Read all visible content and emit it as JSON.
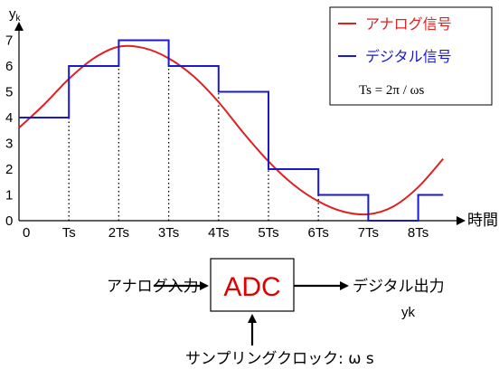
{
  "chart_data": {
    "type": "line",
    "ylabel": "yk",
    "xlabel": "時間",
    "yticks": [
      "0",
      "1",
      "2",
      "3",
      "4",
      "5",
      "6",
      "7"
    ],
    "xticks": [
      "0",
      "Ts",
      "2Ts",
      "3Ts",
      "4Ts",
      "5Ts",
      "6Ts",
      "7Ts",
      "8Ts"
    ],
    "ylim": [
      0,
      7.5
    ],
    "xlim": [
      0,
      8.5
    ],
    "series": [
      {
        "name": "アナログ信号",
        "color": "#e02020",
        "style": "smooth",
        "x": [
          0,
          0.5,
          1,
          1.5,
          2,
          2.5,
          3,
          3.5,
          4,
          4.5,
          5,
          5.5,
          6,
          6.5,
          7,
          7.5,
          8,
          8.5
        ],
        "y": [
          3.6,
          4.5,
          5.5,
          6.3,
          6.75,
          6.7,
          6.3,
          5.6,
          4.6,
          3.4,
          2.3,
          1.4,
          0.75,
          0.35,
          0.25,
          0.55,
          1.3,
          2.4
        ]
      },
      {
        "name": "デジタル信号",
        "color": "#1a1acc",
        "style": "step",
        "x": [
          0,
          1,
          2,
          3,
          4,
          5,
          6,
          7,
          8,
          8.5
        ],
        "y": [
          4,
          6,
          7,
          6,
          5,
          2,
          1,
          0,
          1,
          1
        ]
      }
    ],
    "legend_position": "top-right",
    "formula": "Ts = 2π / ωs"
  },
  "block": {
    "input_label": "アナログ入力",
    "adc_label": "ADC",
    "output_label": "デジタル出力",
    "output_sub": "yk",
    "clock_label": "サンプリングクロック: ω s"
  }
}
